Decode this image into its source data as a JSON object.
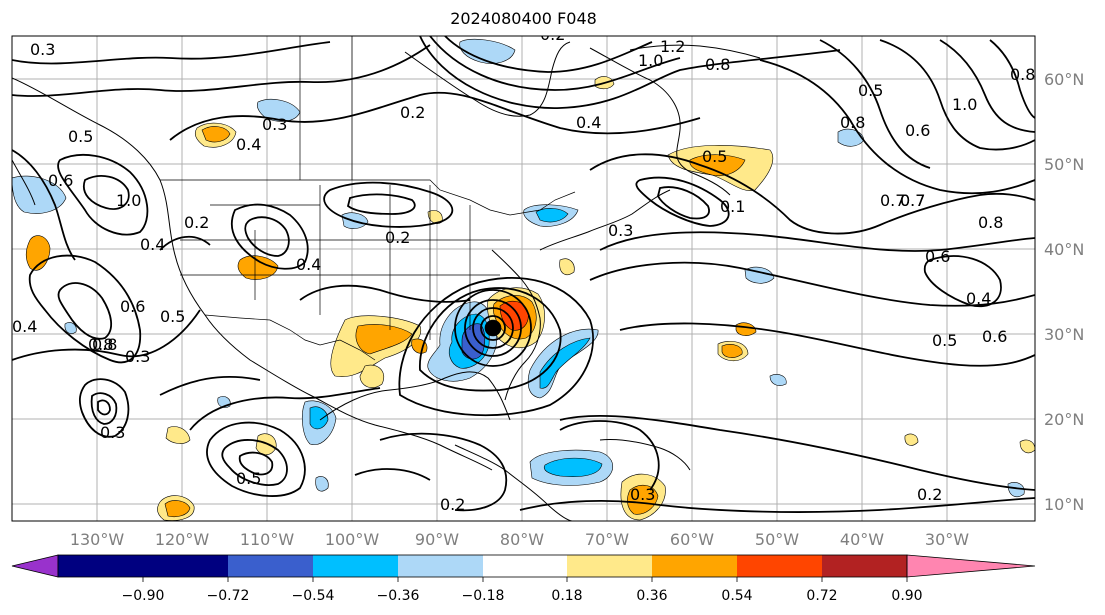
{
  "title": "2024080400 F048",
  "map": {
    "lon_labels": [
      "130°W",
      "120°W",
      "110°W",
      "100°W",
      "90°W",
      "80°W",
      "70°W",
      "60°W",
      "50°W",
      "40°W",
      "30°W"
    ],
    "lat_labels": [
      "60°N",
      "50°N",
      "40°N",
      "30°N",
      "20°N",
      "10°N"
    ],
    "contour_labels": [
      "0.3",
      "1.2",
      "1.0",
      "0.8",
      "0.5",
      "0.6",
      "0.7",
      "0.4",
      "0.2",
      "0.5",
      "0.3",
      "0.6",
      "0.8",
      "0.4",
      "0.5",
      "0.2",
      "0.3",
      "0.4",
      "0.2",
      "0.3",
      "0.6",
      "0.8",
      "1.0",
      "0.5",
      "0.4",
      "0.8",
      "0.7",
      "0.6",
      "0.4",
      "0.5",
      "0.6",
      "0.2",
      "0.2",
      "0.3",
      "0.4",
      "0.5",
      "0.3",
      "0.2",
      "0.1",
      "0.7",
      "0.8",
      "1.0",
      "0.8"
    ]
  },
  "colorbar": {
    "colors": [
      "#9932cc",
      "#000080",
      "#3a5fcd",
      "#00bfff",
      "#add8f7",
      "#ffffff",
      "#ffe98a",
      "#ffa500",
      "#ff4500",
      "#b22222",
      "#ff85b0"
    ],
    "tick_labels": [
      "−0.90",
      "−0.72",
      "−0.54",
      "−0.36",
      "−0.18",
      "0.18",
      "0.36",
      "0.54",
      "0.72",
      "0.90"
    ]
  }
}
